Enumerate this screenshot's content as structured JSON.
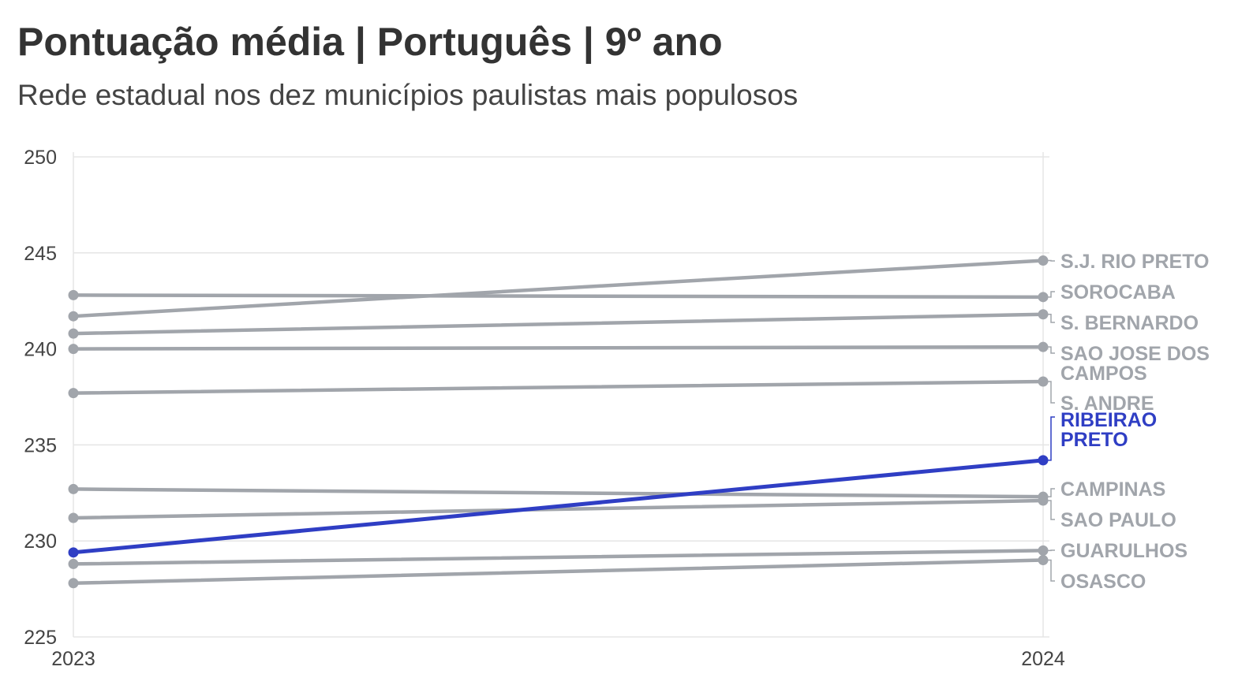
{
  "title": "Pontuação média | Português | 9º ano",
  "subtitle": "Rede estadual nos dez municípios paulistas mais populosos",
  "colors": {
    "default_line": "#a1a5ab",
    "highlight_line": "#2f3ec4",
    "grid": "#e5e5e5",
    "tick_text": "#444444"
  },
  "chart_data": {
    "type": "line",
    "x": [
      "2023",
      "2024"
    ],
    "ylim": [
      225,
      250
    ],
    "yticks": [
      225,
      230,
      235,
      240,
      245,
      250
    ],
    "grid": true,
    "highlight": "RIBEIRAO PRETO",
    "series": [
      {
        "name": "S.J. RIO PRETO",
        "label_lines": [
          "S.J. RIO PRETO"
        ],
        "values": [
          241.7,
          244.6
        ]
      },
      {
        "name": "SOROCABA",
        "label_lines": [
          "SOROCABA"
        ],
        "values": [
          242.8,
          242.7
        ]
      },
      {
        "name": "S. BERNARDO",
        "label_lines": [
          "S. BERNARDO"
        ],
        "values": [
          240.8,
          241.8
        ]
      },
      {
        "name": "SAO JOSE DOS CAMPOS",
        "label_lines": [
          "SAO JOSE DOS",
          "CAMPOS"
        ],
        "values": [
          240.0,
          240.1
        ]
      },
      {
        "name": "S. ANDRE",
        "label_lines": [
          "S. ANDRE"
        ],
        "values": [
          237.7,
          238.3
        ]
      },
      {
        "name": "RIBEIRAO PRETO",
        "label_lines": [
          "RIBEIRAO",
          "PRETO"
        ],
        "values": [
          229.4,
          234.2
        ]
      },
      {
        "name": "CAMPINAS",
        "label_lines": [
          "CAMPINAS"
        ],
        "values": [
          232.7,
          232.3
        ]
      },
      {
        "name": "SAO PAULO",
        "label_lines": [
          "SAO PAULO"
        ],
        "values": [
          231.2,
          232.1
        ]
      },
      {
        "name": "GUARULHOS",
        "label_lines": [
          "GUARULHOS"
        ],
        "values": [
          228.8,
          229.5
        ]
      },
      {
        "name": "OSASCO",
        "label_lines": [
          "OSASCO"
        ],
        "values": [
          227.8,
          229.0
        ]
      }
    ]
  }
}
